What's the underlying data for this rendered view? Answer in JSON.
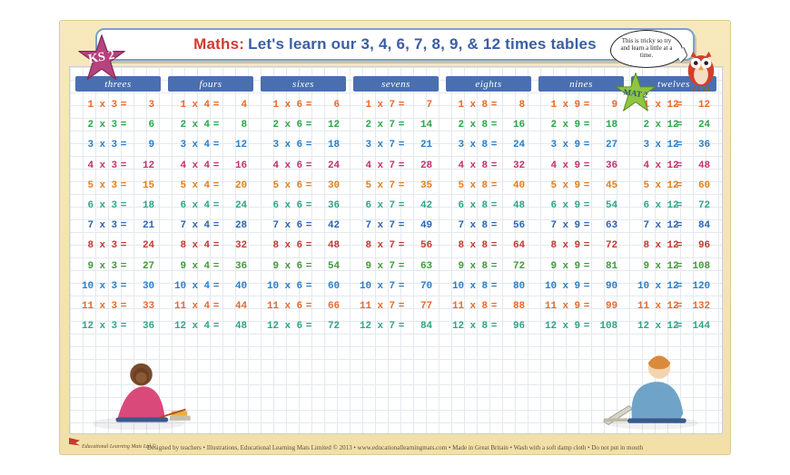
{
  "badge_ks2": "KS 2",
  "badge_mat": "MAT 2",
  "title_prefix": "Maths:",
  "title_rest": "Let's learn our 3, 4, 6, 7, 8, 9, & 12 times tables",
  "speech": "This is tricky so try and learn a little at a time.",
  "footer": "Designed by teachers • Illustrations, Educational Learning Mats Limited © 2013 • www.educationallearningmats.com • Made in Great Britain • Wash with a soft damp cloth • Do not put in mouth",
  "logo_text": "Educational Learning Mats Ltd ©",
  "columns": [
    {
      "label": "threes",
      "n": 3
    },
    {
      "label": "fours",
      "n": 4
    },
    {
      "label": "sixes",
      "n": 6
    },
    {
      "label": "sevens",
      "n": 7
    },
    {
      "label": "eights",
      "n": 8
    },
    {
      "label": "nines",
      "n": 9
    },
    {
      "label": "twelves",
      "n": 12
    }
  ],
  "row_colors": [
    "#e86a2c",
    "#2fa44a",
    "#2a7ec7",
    "#c4306e",
    "#e07f1e",
    "#2fa489",
    "#2a64b3",
    "#c13a32",
    "#439a3a",
    "#2a7ec7",
    "#e86a2c",
    "#2fa489"
  ],
  "header_tab_bg": "#4a6fb0",
  "header_tab_fg": "#ffffff",
  "star_ks2_fill": "#b6427e",
  "star_mat_fill": "#8fc540",
  "owl_fill": "#d0402c",
  "grid_color": "#e4e9ef",
  "mat_bg": "#f5e6b2",
  "range": {
    "from": 1,
    "to": 12
  }
}
